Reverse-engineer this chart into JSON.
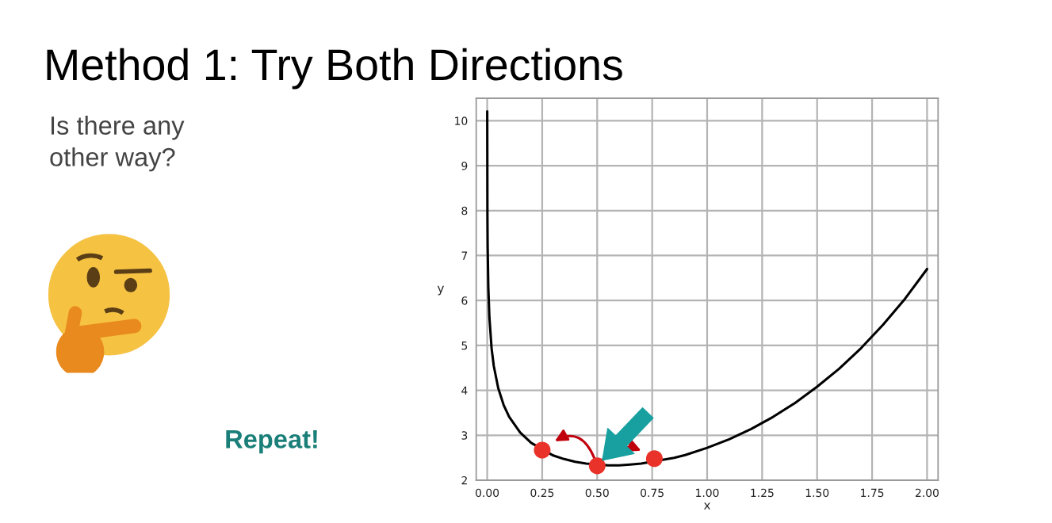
{
  "chart_data": {
    "type": "line",
    "title": "Method 1: Try Both Directions",
    "xlabel": "x",
    "ylabel": "y",
    "annotations": [
      "Is there any\nother way?",
      "Repeat!"
    ],
    "series": [
      {
        "color": "#000000",
        "x": [
          0.0001,
          0.001,
          0.002,
          0.005,
          0.01,
          0.02,
          0.03,
          0.05,
          0.075,
          0.1,
          0.15,
          0.2,
          0.3,
          0.35,
          0.4,
          0.45,
          0.55,
          0.6,
          0.65,
          0.7,
          0.85,
          0.9,
          1.0,
          1.1,
          1.2,
          1.3,
          1.4,
          1.5,
          1.6,
          1.7,
          1.8,
          1.9,
          2.0
        ],
        "values": [
          10.21,
          7.91,
          7.22,
          6.3,
          5.62,
          4.93,
          4.54,
          4.05,
          3.67,
          3.41,
          3.06,
          2.83,
          2.55,
          2.47,
          2.41,
          2.37,
          2.33,
          2.33,
          2.35,
          2.37,
          2.5,
          2.56,
          2.72,
          2.91,
          3.14,
          3.41,
          3.72,
          4.08,
          4.48,
          4.94,
          5.46,
          6.04,
          6.7
        ]
      },
      {
        "type": "scatter",
        "color": "#e8322a",
        "marker": "circle",
        "x": [
          0.25,
          0.5,
          0.76
        ],
        "values": [
          2.67,
          2.32,
          2.48
        ]
      }
    ],
    "xlim": [
      -0.05,
      2.05
    ],
    "ylim": [
      2,
      10.5
    ],
    "xticks": [
      {
        "value": 0,
        "label": "0.00"
      },
      {
        "value": 0.25,
        "label": "0.25"
      },
      {
        "value": 0.5,
        "label": "0.50"
      },
      {
        "value": 0.75,
        "label": "0.75"
      },
      {
        "value": 1,
        "label": "1.00"
      },
      {
        "value": 1.25,
        "label": "1.25"
      },
      {
        "value": 1.5,
        "label": "1.50"
      },
      {
        "value": 1.75,
        "label": "1.75"
      },
      {
        "value": 2,
        "label": "2.00"
      }
    ],
    "yticks": [
      2,
      3,
      4,
      5,
      6,
      7,
      8,
      9,
      10
    ],
    "grid": true
  }
}
